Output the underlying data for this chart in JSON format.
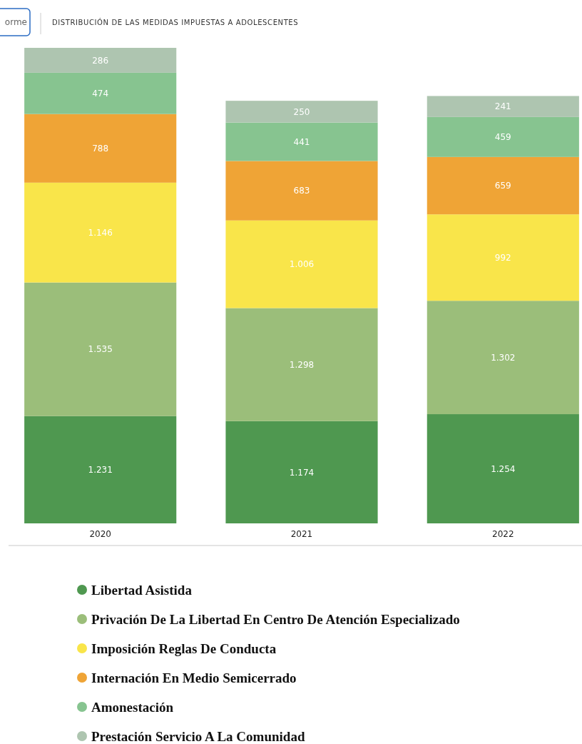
{
  "chart_data": {
    "type": "bar",
    "stacked": true,
    "title": "DISTRIBUCIÓN DE LAS MEDIDAS IMPUESTAS A ADOLESCENTES",
    "annotations": [
      "orme"
    ],
    "categories": [
      "2020",
      "2021",
      "2022"
    ],
    "legend": "bottom",
    "data_labels": true,
    "series": [
      {
        "name": "Libertad Asistida",
        "color": "#4f9850",
        "values": [
          1231,
          1174,
          1254
        ],
        "value_labels": [
          "1.231",
          "1.174",
          "1.254"
        ]
      },
      {
        "name": "Privación De La Libertad En Centro De Atención Especializado",
        "color": "#9bbe7a",
        "values": [
          1535,
          1298,
          1302
        ],
        "value_labels": [
          "1.535",
          "1.298",
          "1.302"
        ]
      },
      {
        "name": "Imposición Reglas De Conducta",
        "color": "#f9e54a",
        "values": [
          1146,
          1006,
          992
        ],
        "value_labels": [
          "1.146",
          "1.006",
          "992"
        ]
      },
      {
        "name": "Internación En Medio Semicerrado",
        "color": "#efa436",
        "values": [
          788,
          683,
          659
        ],
        "value_labels": [
          "788",
          "683",
          "659"
        ]
      },
      {
        "name": "Amonestación",
        "color": "#87c490",
        "values": [
          474,
          441,
          459
        ],
        "value_labels": [
          "474",
          "441",
          "459"
        ]
      },
      {
        "name": "Prestación Servicio A La Comunidad",
        "color": "#aec5b0",
        "values": [
          286,
          250,
          241
        ],
        "value_labels": [
          "286",
          "250",
          "241"
        ]
      }
    ]
  }
}
